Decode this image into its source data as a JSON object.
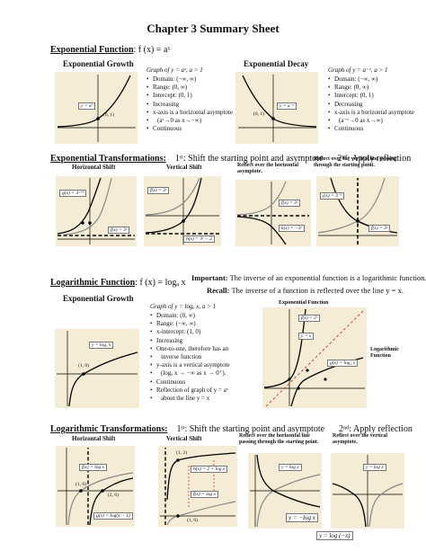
{
  "title": "Chapter 3 Summary Sheet",
  "exp": {
    "heading": "Exponential Function",
    "formula": ": f (x) = aˣ",
    "growth": {
      "title": "Exponential Growth",
      "caption": "Graph of y = aˣ, a > 1",
      "bullets": [
        "Domain: (−∞, ∞)",
        "Range: (0, ∞)",
        "Intercept: (0, 1)",
        "Increasing",
        "x-axis is a horizontal asymptote",
        "(aˣ→0 as x→−∞)",
        "Continuous"
      ],
      "box": "y = aˣ",
      "point": "(0, 1)"
    },
    "decay": {
      "title": "Exponential Decay",
      "caption": "Graph of y = a⁻ˣ, a > 1",
      "bullets": [
        "Domain: (−∞, ∞)",
        "Range: (0, ∞)",
        "Intercept: (0, 1)",
        "Decreasing",
        "x-axis is a horizontal asymptote",
        "(a⁻ˣ→0 as x→∞)",
        "Continuous"
      ],
      "box": "y = a⁻ˣ",
      "point": "(0, 1)"
    }
  },
  "exptrans": {
    "heading": "Exponential Transformations:",
    "step1": "1ˢᵗ: Shift the starting point and asymptote",
    "step2": "2ⁿᵈ: Apply reflection",
    "g1": {
      "title": "Horizontal Shift",
      "box1": "g(x) = 3ˣ⁺¹",
      "box2": "f(x) = 3ˣ"
    },
    "g2": {
      "title": "Vertical Shift",
      "box1": "f(x) = 3ˣ",
      "box2": "h(x) = 3ˣ − 2"
    },
    "g3": {
      "title": "Reflect over the horizontal asymptote.",
      "box1": "f(x) = 3ˣ",
      "box2": "k(x) = −3ˣ"
    },
    "g4": {
      "title": "Reflect over the vertical line passing through the starting point.",
      "box1": "j(x) = 3⁻ˣ",
      "box2": "f(x) = 3ˣ"
    }
  },
  "log": {
    "heading": "Logarithmic Function",
    "formula": ": f (x) = logₐ x",
    "important_label": "Important:",
    "important": "The inverse of an exponential function is a logarithmic function.",
    "recall_label": "Recall:",
    "recall": "The inverse of a function is reflected over the line y = x.",
    "growth_title": "Exponential Growth",
    "caption": "Graph of y = logₐ x, a > 1",
    "bullets": [
      "Domain: (0, ∞)",
      "Range: (−∞, ∞)",
      "x-intercept: (1, 0)",
      "Increasing",
      "One-to-one, therefore has an",
      "inverse function",
      "y-axis is a vertical asymptote",
      "(logₐ x → −∞ as x → 0⁺).",
      "Continuous",
      "Reflection of graph of y = aˣ",
      "about the line y = x"
    ],
    "box": "y = logₐ x",
    "point": "(1, 0)",
    "right": {
      "title": "Exponential Function",
      "label": "Logarithmic Function",
      "box1": "f(x) = 2ˣ",
      "box2": "y = x",
      "box3": "g(x) = log₂ x"
    }
  },
  "logtrans": {
    "heading": "Logarithmic Transformations:",
    "step1": "1ˢᵗ: Shift the starting point and asymptote",
    "step2": "2ⁿᵈ: Apply reflection",
    "g1": {
      "title": "Horizontal Shift",
      "box1": "f(x) = log x",
      "box2": "g(x) = log(x − 1)",
      "p1": "(1, 0)",
      "p2": "(2, 0)"
    },
    "g2": {
      "title": "Vertical Shift",
      "box1": "h(x) = 2 + log x",
      "box2": "f(x) = log x",
      "p1": "(1, 2)",
      "p2": "(1, 0)"
    },
    "g3": {
      "title": "Reflect over the horizontal line passing through the starting point.",
      "box1": "y = log x",
      "box2": "y = −log x"
    },
    "g4": {
      "title": "Reflect over the vertical asymptote.",
      "box1": "y = log x",
      "box2": "y = log (−x)"
    }
  }
}
